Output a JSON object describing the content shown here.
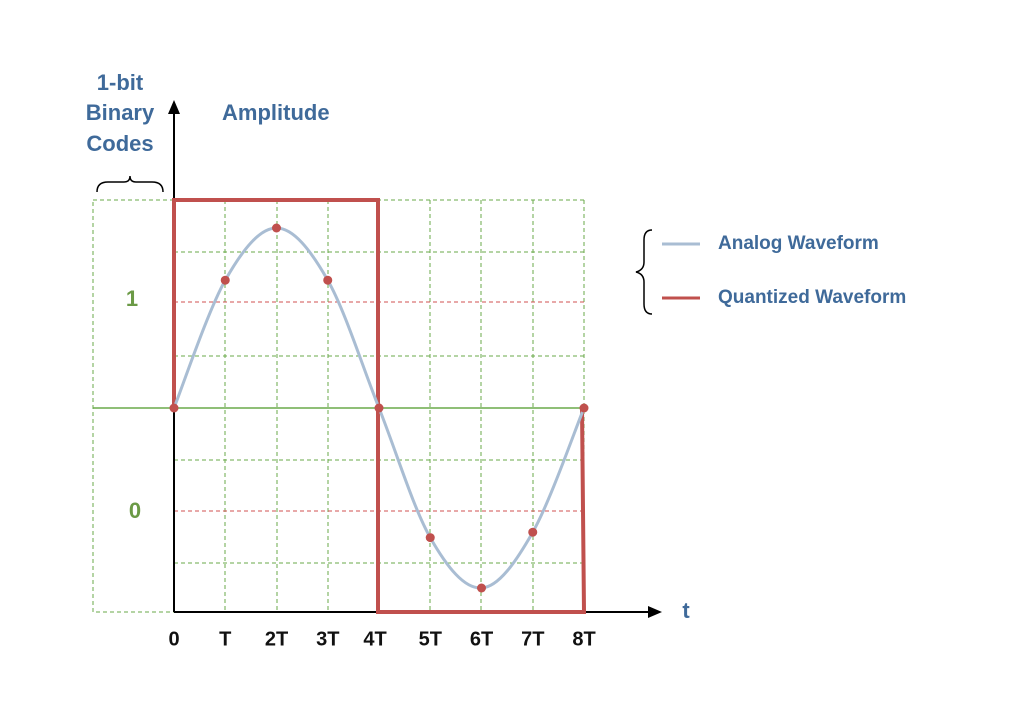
{
  "y_label_left": [
    "1-bit",
    "Binary",
    "Codes"
  ],
  "y_label": "Amplitude",
  "x_label": "t",
  "codes": [
    "1",
    "0"
  ],
  "x_ticks": [
    "0",
    "T",
    "2T",
    "3T",
    "4T",
    "5T",
    "6T",
    "7T",
    "8T"
  ],
  "samples": [
    0,
    0.71,
    1,
    0.71,
    0,
    -0.72,
    -1,
    -0.69,
    0
  ],
  "legend": [
    "Analog Waveform",
    "Quantized Waveform"
  ]
}
